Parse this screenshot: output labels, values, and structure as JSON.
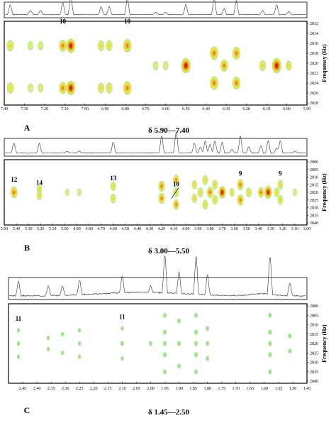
{
  "chart_data": [
    {
      "type": "heatmap",
      "panel_label": "A",
      "range_label": "δ 5.90—7.40",
      "ylabel": "Frequency (Hz)",
      "xlim": [
        7.4,
        5.9
      ],
      "ylim": [
        2812,
        2828
      ],
      "x_ticks": [
        "7.40",
        "7.30",
        "7.20",
        "7.10",
        "7.00",
        "6.90",
        "6.80",
        "6.70",
        "6.60",
        "6.50",
        "6.40",
        "6.30",
        "6.20",
        "6.10",
        "6.00",
        "5.90"
      ],
      "y_ticks": [
        2812,
        2814,
        2816,
        2818,
        2820,
        2822,
        2824,
        2826,
        2828
      ],
      "annotations": [
        {
          "text": "10",
          "x": 7.11,
          "y": 2812
        },
        {
          "text": "10",
          "x": 6.79,
          "y": 2812
        }
      ],
      "peaks": [
        {
          "x": 7.37,
          "y": 2816.5,
          "i": 0.5
        },
        {
          "x": 7.37,
          "y": 2825,
          "i": 0.5
        },
        {
          "x": 7.27,
          "y": 2816.5,
          "i": 0.2
        },
        {
          "x": 7.27,
          "y": 2825,
          "i": 0.2
        },
        {
          "x": 7.22,
          "y": 2816.5,
          "i": 0.2
        },
        {
          "x": 7.22,
          "y": 2825,
          "i": 0.2
        },
        {
          "x": 7.11,
          "y": 2816.5,
          "i": 0.6
        },
        {
          "x": 7.11,
          "y": 2825,
          "i": 0.6
        },
        {
          "x": 7.07,
          "y": 2816.5,
          "i": 0.9
        },
        {
          "x": 7.07,
          "y": 2825,
          "i": 0.9
        },
        {
          "x": 6.92,
          "y": 2816.5,
          "i": 0.4
        },
        {
          "x": 6.92,
          "y": 2825,
          "i": 0.4
        },
        {
          "x": 6.88,
          "y": 2816.5,
          "i": 0.4
        },
        {
          "x": 6.88,
          "y": 2825,
          "i": 0.4
        },
        {
          "x": 6.79,
          "y": 2816.5,
          "i": 0.8
        },
        {
          "x": 6.79,
          "y": 2825,
          "i": 0.8
        },
        {
          "x": 6.65,
          "y": 2820.5,
          "i": 0.2
        },
        {
          "x": 6.6,
          "y": 2820.5,
          "i": 0.2
        },
        {
          "x": 6.5,
          "y": 2820.5,
          "i": 1.0
        },
        {
          "x": 6.36,
          "y": 2818,
          "i": 0.8
        },
        {
          "x": 6.36,
          "y": 2824,
          "i": 0.8
        },
        {
          "x": 6.31,
          "y": 2820.5,
          "i": 0.6
        },
        {
          "x": 6.25,
          "y": 2818,
          "i": 0.7
        },
        {
          "x": 6.25,
          "y": 2824,
          "i": 0.7
        },
        {
          "x": 6.12,
          "y": 2820.5,
          "i": 0.4
        },
        {
          "x": 6.05,
          "y": 2820.5,
          "i": 1.0
        },
        {
          "x": 5.99,
          "y": 2820.5,
          "i": 0.3
        }
      ]
    },
    {
      "type": "heatmap",
      "panel_label": "B",
      "range_label": "δ 3.00—5.50",
      "ylabel": "Frequency (Hz)",
      "xlim": [
        5.5,
        3.0
      ],
      "ylim": [
        2800,
        2840
      ],
      "x_ticks": [
        "5.50",
        "5.40",
        "5.30",
        "5.20",
        "5.10",
        "5.00",
        "4.90",
        "4.80",
        "4.70",
        "4.60",
        "4.50",
        "4.40",
        "4.30",
        "4.20",
        "4.10",
        "4.00",
        "3.90",
        "3.80",
        "3.70",
        "3.60",
        "3.50",
        "3.40",
        "3.30",
        "3.20",
        "3.10",
        "3.00"
      ],
      "y_ticks": [
        2800,
        2805,
        2810,
        2815,
        2820,
        2825,
        2830,
        2835,
        2840
      ],
      "annotations": [
        {
          "text": "12",
          "x": 5.42,
          "y": 2813
        },
        {
          "text": "14",
          "x": 5.21,
          "y": 2815
        },
        {
          "text": "13",
          "x": 4.6,
          "y": 2812
        },
        {
          "text": "10",
          "x": 4.08,
          "y": 2816
        },
        {
          "text": "9",
          "x": 3.55,
          "y": 2809
        },
        {
          "text": "9",
          "x": 3.22,
          "y": 2809
        }
      ],
      "peaks": [
        {
          "x": 5.42,
          "y": 2820,
          "i": 0.8
        },
        {
          "x": 5.21,
          "y": 2818,
          "i": 0.4
        },
        {
          "x": 5.21,
          "y": 2822,
          "i": 0.4
        },
        {
          "x": 4.98,
          "y": 2820,
          "i": 0.15
        },
        {
          "x": 4.88,
          "y": 2820,
          "i": 0.15
        },
        {
          "x": 4.6,
          "y": 2816,
          "i": 0.45
        },
        {
          "x": 4.6,
          "y": 2824,
          "i": 0.45
        },
        {
          "x": 4.2,
          "y": 2816,
          "i": 0.7
        },
        {
          "x": 4.2,
          "y": 2824,
          "i": 0.7
        },
        {
          "x": 4.08,
          "y": 2812,
          "i": 0.6
        },
        {
          "x": 4.08,
          "y": 2820,
          "i": 0.5
        },
        {
          "x": 4.08,
          "y": 2828,
          "i": 0.6
        },
        {
          "x": 3.93,
          "y": 2815,
          "i": 0.4
        },
        {
          "x": 3.93,
          "y": 2824,
          "i": 0.4
        },
        {
          "x": 3.88,
          "y": 2820,
          "i": 0.5
        },
        {
          "x": 3.84,
          "y": 2812,
          "i": 0.5
        },
        {
          "x": 3.84,
          "y": 2828,
          "i": 0.5
        },
        {
          "x": 3.8,
          "y": 2820,
          "i": 0.7
        },
        {
          "x": 3.76,
          "y": 2815,
          "i": 0.5
        },
        {
          "x": 3.76,
          "y": 2825,
          "i": 0.5
        },
        {
          "x": 3.7,
          "y": 2820,
          "i": 0.9
        },
        {
          "x": 3.62,
          "y": 2820,
          "i": 0.3
        },
        {
          "x": 3.55,
          "y": 2815,
          "i": 0.7
        },
        {
          "x": 3.55,
          "y": 2825,
          "i": 0.7
        },
        {
          "x": 3.48,
          "y": 2820,
          "i": 0.5
        },
        {
          "x": 3.38,
          "y": 2820,
          "i": 0.6
        },
        {
          "x": 3.32,
          "y": 2820,
          "i": 1.0
        },
        {
          "x": 3.25,
          "y": 2820,
          "i": 0.4
        },
        {
          "x": 3.22,
          "y": 2815,
          "i": 0.5
        },
        {
          "x": 3.22,
          "y": 2825,
          "i": 0.5
        },
        {
          "x": 3.1,
          "y": 2820,
          "i": 0.15
        }
      ]
    },
    {
      "type": "heatmap",
      "panel_label": "C",
      "range_label": "δ 1.45—2.50",
      "ylabel": "Frequency (Hz)",
      "xlim": [
        2.5,
        1.45
      ],
      "ylim": [
        2800,
        2840
      ],
      "x_ticks": [
        "2.45",
        "2.40",
        "2.35",
        "2.30",
        "2.25",
        "2.20",
        "2.15",
        "2.10",
        "2.05",
        "2.00",
        "1.95",
        "1.90",
        "1.85",
        "1.80",
        "1.75",
        "1.70",
        "1.65",
        "1.60",
        "1.55",
        "1.50",
        "1.45"
      ],
      "y_ticks": [
        2800,
        2805,
        2810,
        2815,
        2820,
        2825,
        2830,
        2835,
        2840
      ],
      "annotations": [
        {
          "text": "11",
          "x": 2.465,
          "y": 2808
        },
        {
          "text": "11",
          "x": 2.1,
          "y": 2807
        }
      ],
      "peaks": [
        {
          "x": 2.465,
          "y": 2813,
          "i": 0.3
        },
        {
          "x": 2.465,
          "y": 2820,
          "i": 0.3
        },
        {
          "x": 2.465,
          "y": 2827,
          "i": 0.3
        },
        {
          "x": 2.36,
          "y": 2817,
          "i": 0.3
        },
        {
          "x": 2.36,
          "y": 2823,
          "i": 0.3
        },
        {
          "x": 2.31,
          "y": 2815,
          "i": 0.3
        },
        {
          "x": 2.31,
          "y": 2825,
          "i": 0.3
        },
        {
          "x": 2.25,
          "y": 2813,
          "i": 0.3
        },
        {
          "x": 2.25,
          "y": 2820,
          "i": 0.3
        },
        {
          "x": 2.25,
          "y": 2827,
          "i": 0.3
        },
        {
          "x": 2.1,
          "y": 2812,
          "i": 0.3
        },
        {
          "x": 2.1,
          "y": 2820,
          "i": 0.4
        },
        {
          "x": 2.1,
          "y": 2828,
          "i": 0.3
        },
        {
          "x": 2.0,
          "y": 2820,
          "i": 0.4
        },
        {
          "x": 1.95,
          "y": 2805,
          "i": 0.4
        },
        {
          "x": 1.95,
          "y": 2814,
          "i": 0.5
        },
        {
          "x": 1.95,
          "y": 2820,
          "i": 0.5
        },
        {
          "x": 1.95,
          "y": 2826,
          "i": 0.5
        },
        {
          "x": 1.95,
          "y": 2835,
          "i": 0.4
        },
        {
          "x": 1.9,
          "y": 2808,
          "i": 0.4
        },
        {
          "x": 1.9,
          "y": 2820,
          "i": 0.5
        },
        {
          "x": 1.9,
          "y": 2832,
          "i": 0.4
        },
        {
          "x": 1.84,
          "y": 2805,
          "i": 0.4
        },
        {
          "x": 1.84,
          "y": 2814,
          "i": 0.5
        },
        {
          "x": 1.84,
          "y": 2820,
          "i": 0.5
        },
        {
          "x": 1.84,
          "y": 2826,
          "i": 0.5
        },
        {
          "x": 1.84,
          "y": 2835,
          "i": 0.4
        },
        {
          "x": 1.8,
          "y": 2812,
          "i": 0.4
        },
        {
          "x": 1.8,
          "y": 2820,
          "i": 0.4
        },
        {
          "x": 1.8,
          "y": 2828,
          "i": 0.4
        },
        {
          "x": 1.58,
          "y": 2805,
          "i": 0.4
        },
        {
          "x": 1.58,
          "y": 2814,
          "i": 0.5
        },
        {
          "x": 1.58,
          "y": 2820,
          "i": 0.5
        },
        {
          "x": 1.58,
          "y": 2826,
          "i": 0.5
        },
        {
          "x": 1.58,
          "y": 2835,
          "i": 0.4
        },
        {
          "x": 1.51,
          "y": 2816,
          "i": 0.4
        },
        {
          "x": 1.51,
          "y": 2824,
          "i": 0.4
        }
      ]
    }
  ]
}
